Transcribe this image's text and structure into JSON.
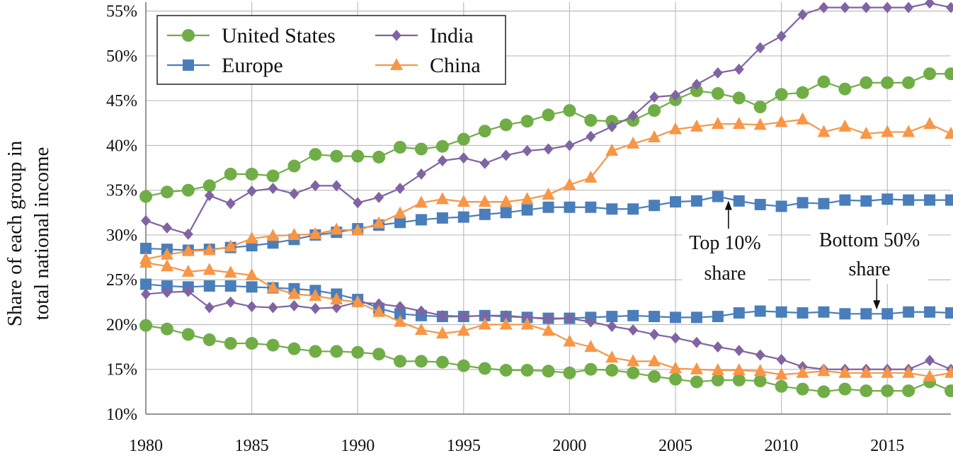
{
  "chart_data": {
    "type": "line",
    "title": "",
    "xlabel": "",
    "ylabel": "Share of each group in total national income",
    "ylabel_lines": [
      "Share of each group in",
      "total national income"
    ],
    "xlim": [
      1980,
      2018
    ],
    "ylim": [
      10,
      56
    ],
    "x_ticks": [
      1980,
      1985,
      1990,
      1995,
      2000,
      2005,
      2010,
      2015
    ],
    "x_tick_labels": [
      "1980",
      "1985",
      "1990",
      "1995",
      "2000",
      "2005",
      "2010",
      "2015"
    ],
    "y_ticks": [
      10,
      15,
      20,
      25,
      30,
      35,
      40,
      45,
      50,
      55
    ],
    "y_tick_labels": [
      "10%",
      "15%",
      "20%",
      "25%",
      "30%",
      "35%",
      "40%",
      "45%",
      "50%",
      "55%"
    ],
    "grid": true,
    "legend_position": "top-left",
    "x": [
      1980,
      1981,
      1982,
      1983,
      1984,
      1985,
      1986,
      1987,
      1988,
      1989,
      1990,
      1991,
      1992,
      1993,
      1994,
      1995,
      1996,
      1997,
      1998,
      1999,
      2000,
      2001,
      2002,
      2003,
      2004,
      2005,
      2006,
      2007,
      2008,
      2009,
      2010,
      2011,
      2012,
      2013,
      2014,
      2015,
      2016,
      2017,
      2018
    ],
    "series": [
      {
        "name": "United States",
        "group": "Top 10% share",
        "color": "#70ad47",
        "marker": "circle",
        "values": [
          34.3,
          34.8,
          35.0,
          35.5,
          36.8,
          36.8,
          36.6,
          37.7,
          39.0,
          38.8,
          38.8,
          38.7,
          39.8,
          39.6,
          39.9,
          40.7,
          41.6,
          42.3,
          42.7,
          43.4,
          43.9,
          42.8,
          42.7,
          42.8,
          43.9,
          45.1,
          46.1,
          45.8,
          45.3,
          44.3,
          45.7,
          45.9,
          47.1,
          46.3,
          47.0,
          47.0,
          47.0,
          48.0,
          48.0
        ]
      },
      {
        "name": "United States",
        "group": "Bottom 50% share",
        "color": "#70ad47",
        "marker": "circle",
        "values": [
          19.9,
          19.5,
          18.9,
          18.3,
          17.9,
          17.9,
          17.7,
          17.3,
          17.0,
          17.0,
          16.9,
          16.7,
          15.9,
          15.9,
          15.8,
          15.4,
          15.1,
          14.9,
          14.9,
          14.8,
          14.6,
          15.0,
          14.9,
          14.6,
          14.2,
          13.9,
          13.6,
          13.8,
          13.8,
          13.7,
          13.1,
          12.8,
          12.5,
          12.8,
          12.6,
          12.6,
          12.6,
          13.6,
          12.6
        ]
      },
      {
        "name": "Europe",
        "group": "Top 10% share",
        "color": "#4a7ebb",
        "marker": "square",
        "values": [
          28.5,
          28.4,
          28.3,
          28.4,
          28.6,
          28.8,
          29.1,
          29.5,
          30.0,
          30.3,
          30.7,
          31.1,
          31.4,
          31.7,
          31.9,
          32.0,
          32.3,
          32.5,
          32.8,
          33.1,
          33.1,
          33.1,
          32.9,
          32.9,
          33.3,
          33.7,
          33.8,
          34.3,
          33.8,
          33.4,
          33.2,
          33.6,
          33.5,
          33.9,
          33.8,
          34.0,
          33.9,
          33.9,
          33.9
        ]
      },
      {
        "name": "Europe",
        "group": "Bottom 50% share",
        "color": "#4a7ebb",
        "marker": "square",
        "values": [
          24.5,
          24.3,
          24.2,
          24.3,
          24.3,
          24.2,
          24.1,
          24.0,
          23.8,
          23.4,
          22.8,
          21.8,
          21.2,
          21.0,
          20.9,
          20.9,
          21.0,
          20.9,
          20.8,
          20.7,
          20.7,
          20.8,
          20.9,
          21.0,
          20.9,
          20.8,
          20.8,
          20.9,
          21.3,
          21.5,
          21.4,
          21.3,
          21.4,
          21.2,
          21.2,
          21.2,
          21.4,
          21.4,
          21.3
        ]
      },
      {
        "name": "India",
        "group": "Top 10% share",
        "color": "#8064a2",
        "marker": "diamond",
        "values": [
          31.6,
          30.8,
          30.1,
          34.4,
          33.5,
          34.9,
          35.2,
          34.6,
          35.5,
          35.5,
          33.6,
          34.2,
          35.2,
          36.8,
          38.3,
          38.6,
          38.0,
          38.9,
          39.4,
          39.6,
          40.0,
          41.0,
          42.1,
          43.3,
          45.4,
          45.6,
          46.8,
          48.1,
          48.5,
          50.9,
          52.2,
          54.6,
          55.4,
          55.4,
          55.4,
          55.4,
          55.4,
          55.9,
          55.4
        ]
      },
      {
        "name": "India",
        "group": "Bottom 50% share",
        "color": "#8064a2",
        "marker": "diamond",
        "values": [
          23.4,
          23.6,
          23.7,
          21.9,
          22.5,
          22.0,
          21.9,
          22.1,
          21.8,
          21.9,
          22.5,
          22.3,
          22.0,
          21.5,
          21.0,
          20.9,
          21.0,
          21.0,
          20.8,
          20.6,
          20.7,
          20.3,
          19.8,
          19.4,
          18.9,
          18.5,
          18.0,
          17.5,
          17.1,
          16.6,
          16.1,
          15.3,
          15.0,
          15.0,
          15.0,
          15.0,
          15.0,
          16.0,
          15.0
        ]
      },
      {
        "name": "China",
        "group": "Top 10% share",
        "color": "#f79646",
        "marker": "triangle",
        "values": [
          27.3,
          27.8,
          28.2,
          28.3,
          28.7,
          29.6,
          29.9,
          30.0,
          30.1,
          30.6,
          30.5,
          31.3,
          32.4,
          33.6,
          34.0,
          33.7,
          33.7,
          33.7,
          34.0,
          34.5,
          35.6,
          36.4,
          39.4,
          40.2,
          40.9,
          41.8,
          42.1,
          42.4,
          42.4,
          42.3,
          42.6,
          42.9,
          41.5,
          42.1,
          41.3,
          41.5,
          41.5,
          42.4,
          41.3
        ]
      },
      {
        "name": "China",
        "group": "Bottom 50% share",
        "color": "#f79646",
        "marker": "triangle",
        "values": [
          26.9,
          26.5,
          25.9,
          26.1,
          25.8,
          25.5,
          24.1,
          23.4,
          23.2,
          22.8,
          22.5,
          21.4,
          20.3,
          19.4,
          19.0,
          19.3,
          20.0,
          20.0,
          20.0,
          19.3,
          18.1,
          17.5,
          16.3,
          15.9,
          15.9,
          15.1,
          15.0,
          14.9,
          14.9,
          14.8,
          14.4,
          14.6,
          14.8,
          14.6,
          14.6,
          14.6,
          14.6,
          14.2,
          14.6
        ]
      }
    ],
    "legend": [
      {
        "label": "United States",
        "color": "#70ad47",
        "marker": "circle"
      },
      {
        "label": "India",
        "color": "#8064a2",
        "marker": "diamond"
      },
      {
        "label": "Europe",
        "color": "#4a7ebb",
        "marker": "square"
      },
      {
        "label": "China",
        "color": "#f79646",
        "marker": "triangle"
      }
    ],
    "annotations": [
      {
        "lines": [
          "Top 10%",
          "share"
        ],
        "points_to_x": 2007.5,
        "points_to_y": 34.3
      },
      {
        "lines": [
          "Bottom 50%",
          "share"
        ],
        "points_to_x": 2014.5,
        "points_to_y": 21.2
      }
    ]
  }
}
